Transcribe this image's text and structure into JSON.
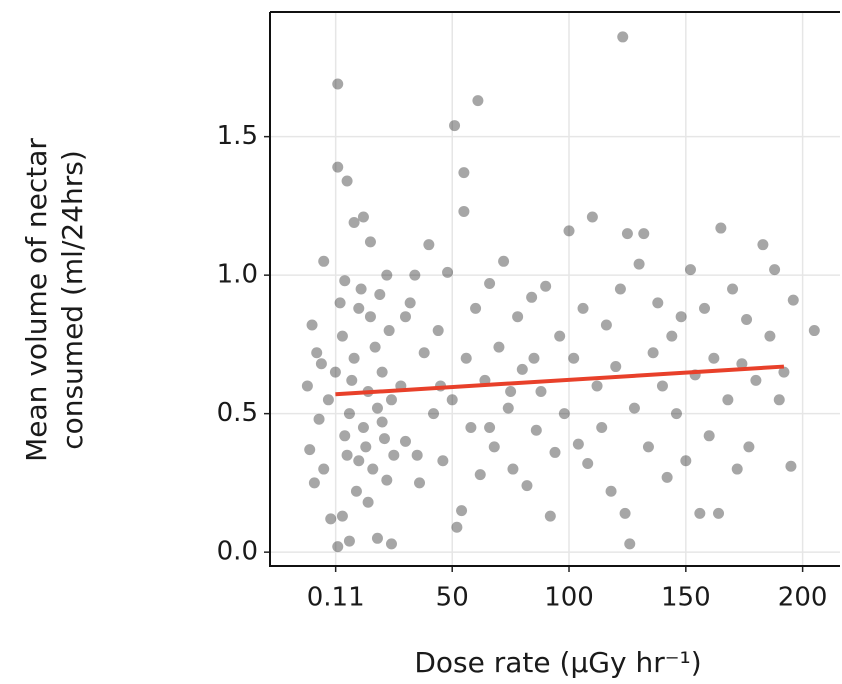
{
  "chart_data": {
    "type": "scatter",
    "x_label": "Dose rate (μGy hr⁻¹)",
    "y_label": [
      "Mean volume of nectar",
      "consumed (ml/24hrs)"
    ],
    "xlim": [
      -28,
      216
    ],
    "ylim": [
      -0.05,
      1.95
    ],
    "xticks": [
      0.11,
      50,
      100,
      150,
      200
    ],
    "yticks": [
      {
        "value": 0,
        "label": "0.0"
      },
      0.5,
      {
        "value": 1,
        "label": "1.0"
      },
      1.5
    ],
    "grid": true,
    "color": "#000000",
    "x": [
      -10,
      -8,
      -12,
      -7,
      -11,
      -5,
      -9,
      -3,
      0,
      2,
      3,
      4,
      5,
      6,
      7,
      8,
      9,
      10,
      11,
      12,
      13,
      14,
      15,
      16,
      17,
      18,
      19,
      20,
      21,
      22,
      23,
      24,
      25,
      1,
      3,
      8,
      12,
      15,
      22,
      -2,
      6,
      18,
      24,
      -6,
      4,
      10,
      14,
      20,
      28,
      30,
      32,
      34,
      36,
      38,
      40,
      42,
      44,
      46,
      48,
      50,
      52,
      54,
      56,
      58,
      60,
      62,
      64,
      66,
      68,
      70,
      72,
      74,
      76,
      78,
      80,
      82,
      84,
      86,
      88,
      90,
      92,
      94,
      96,
      98,
      100,
      30,
      45,
      66,
      85,
      35,
      75,
      102,
      104,
      106,
      108,
      110,
      112,
      114,
      116,
      118,
      120,
      122,
      124,
      125,
      126,
      128,
      130,
      132,
      134,
      136,
      138,
      140,
      142,
      144,
      146,
      148,
      150,
      152,
      154,
      156,
      158,
      160,
      162,
      164,
      165,
      168,
      170,
      172,
      174,
      176,
      177,
      180,
      183,
      186,
      188,
      190,
      192,
      195,
      196,
      205,
      1,
      123,
      51,
      61,
      55,
      55,
      1,
      5,
      -5
    ],
    "values": [
      0.82,
      0.72,
      0.6,
      0.48,
      0.37,
      0.3,
      0.25,
      0.55,
      0.65,
      0.9,
      0.78,
      0.42,
      0.35,
      0.5,
      0.62,
      0.7,
      0.22,
      0.88,
      0.95,
      0.45,
      0.38,
      0.58,
      0.85,
      0.3,
      0.74,
      0.52,
      0.93,
      0.65,
      0.41,
      0.26,
      0.8,
      0.55,
      0.35,
      0.02,
      0.13,
      1.19,
      1.21,
      1.12,
      1.0,
      0.12,
      0.04,
      0.05,
      0.03,
      0.68,
      0.98,
      0.33,
      0.18,
      0.47,
      0.6,
      0.4,
      0.9,
      1.0,
      0.25,
      0.72,
      1.11,
      0.5,
      0.8,
      0.33,
      1.01,
      0.55,
      0.09,
      0.15,
      0.7,
      0.45,
      0.88,
      0.28,
      0.62,
      0.97,
      0.38,
      0.74,
      1.05,
      0.52,
      0.3,
      0.85,
      0.66,
      0.24,
      0.92,
      0.44,
      0.58,
      0.96,
      0.13,
      0.36,
      0.78,
      0.5,
      1.16,
      0.85,
      0.6,
      0.45,
      0.7,
      0.35,
      0.58,
      0.7,
      0.39,
      0.88,
      0.32,
      1.21,
      0.6,
      0.45,
      0.82,
      0.22,
      0.67,
      0.95,
      0.14,
      1.15,
      0.03,
      0.52,
      1.04,
      1.15,
      0.38,
      0.72,
      0.9,
      0.6,
      0.27,
      0.78,
      0.5,
      0.85,
      0.33,
      1.02,
      0.64,
      0.14,
      0.88,
      0.42,
      0.7,
      0.14,
      1.17,
      0.55,
      0.95,
      0.3,
      0.68,
      0.84,
      0.38,
      0.62,
      1.11,
      0.78,
      1.02,
      0.55,
      0.65,
      0.31,
      0.91,
      0.8,
      1.69,
      1.86,
      1.54,
      1.63,
      1.37,
      1.23,
      1.39,
      1.34,
      1.05
    ],
    "trend": {
      "x": [
        0,
        192
      ],
      "values": [
        0.57,
        0.67
      ],
      "color": "#e8402a"
    }
  }
}
